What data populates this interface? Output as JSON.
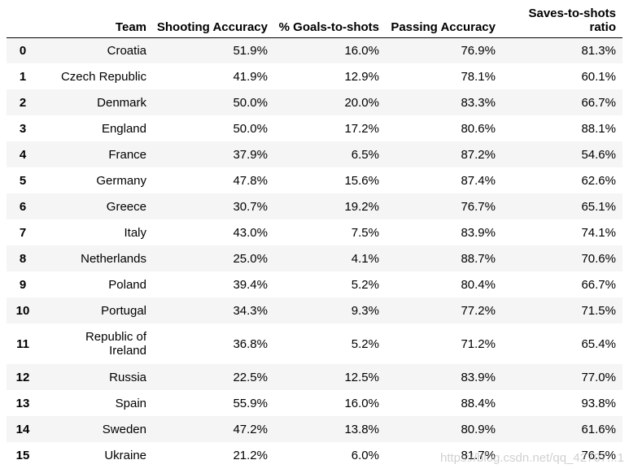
{
  "table": {
    "columns": [
      {
        "key": "index",
        "label": ""
      },
      {
        "key": "team",
        "label": "Team"
      },
      {
        "key": "shooting_accuracy",
        "label": "Shooting Accuracy"
      },
      {
        "key": "goals_to_shots",
        "label": "% Goals-to-shots"
      },
      {
        "key": "passing_accuracy",
        "label": "Passing Accuracy"
      },
      {
        "key": "saves_to_shots_ratio",
        "label": "Saves-to-shots ratio"
      }
    ],
    "rows": [
      {
        "index": "0",
        "team": "Croatia",
        "shooting_accuracy": "51.9%",
        "goals_to_shots": "16.0%",
        "passing_accuracy": "76.9%",
        "saves_to_shots_ratio": "81.3%"
      },
      {
        "index": "1",
        "team": "Czech Republic",
        "shooting_accuracy": "41.9%",
        "goals_to_shots": "12.9%",
        "passing_accuracy": "78.1%",
        "saves_to_shots_ratio": "60.1%"
      },
      {
        "index": "2",
        "team": "Denmark",
        "shooting_accuracy": "50.0%",
        "goals_to_shots": "20.0%",
        "passing_accuracy": "83.3%",
        "saves_to_shots_ratio": "66.7%"
      },
      {
        "index": "3",
        "team": "England",
        "shooting_accuracy": "50.0%",
        "goals_to_shots": "17.2%",
        "passing_accuracy": "80.6%",
        "saves_to_shots_ratio": "88.1%"
      },
      {
        "index": "4",
        "team": "France",
        "shooting_accuracy": "37.9%",
        "goals_to_shots": "6.5%",
        "passing_accuracy": "87.2%",
        "saves_to_shots_ratio": "54.6%"
      },
      {
        "index": "5",
        "team": "Germany",
        "shooting_accuracy": "47.8%",
        "goals_to_shots": "15.6%",
        "passing_accuracy": "87.4%",
        "saves_to_shots_ratio": "62.6%"
      },
      {
        "index": "6",
        "team": "Greece",
        "shooting_accuracy": "30.7%",
        "goals_to_shots": "19.2%",
        "passing_accuracy": "76.7%",
        "saves_to_shots_ratio": "65.1%"
      },
      {
        "index": "7",
        "team": "Italy",
        "shooting_accuracy": "43.0%",
        "goals_to_shots": "7.5%",
        "passing_accuracy": "83.9%",
        "saves_to_shots_ratio": "74.1%"
      },
      {
        "index": "8",
        "team": "Netherlands",
        "shooting_accuracy": "25.0%",
        "goals_to_shots": "4.1%",
        "passing_accuracy": "88.7%",
        "saves_to_shots_ratio": "70.6%"
      },
      {
        "index": "9",
        "team": "Poland",
        "shooting_accuracy": "39.4%",
        "goals_to_shots": "5.2%",
        "passing_accuracy": "80.4%",
        "saves_to_shots_ratio": "66.7%"
      },
      {
        "index": "10",
        "team": "Portugal",
        "shooting_accuracy": "34.3%",
        "goals_to_shots": "9.3%",
        "passing_accuracy": "77.2%",
        "saves_to_shots_ratio": "71.5%"
      },
      {
        "index": "11",
        "team": "Republic of Ireland",
        "shooting_accuracy": "36.8%",
        "goals_to_shots": "5.2%",
        "passing_accuracy": "71.2%",
        "saves_to_shots_ratio": "65.4%"
      },
      {
        "index": "12",
        "team": "Russia",
        "shooting_accuracy": "22.5%",
        "goals_to_shots": "12.5%",
        "passing_accuracy": "83.9%",
        "saves_to_shots_ratio": "77.0%"
      },
      {
        "index": "13",
        "team": "Spain",
        "shooting_accuracy": "55.9%",
        "goals_to_shots": "16.0%",
        "passing_accuracy": "88.4%",
        "saves_to_shots_ratio": "93.8%"
      },
      {
        "index": "14",
        "team": "Sweden",
        "shooting_accuracy": "47.2%",
        "goals_to_shots": "13.8%",
        "passing_accuracy": "80.9%",
        "saves_to_shots_ratio": "61.6%"
      },
      {
        "index": "15",
        "team": "Ukraine",
        "shooting_accuracy": "21.2%",
        "goals_to_shots": "6.0%",
        "passing_accuracy": "81.7%",
        "saves_to_shots_ratio": "76.5%"
      }
    ]
  },
  "watermark": {
    "text": "https://blog.csdn.net/qq_42707...1"
  }
}
